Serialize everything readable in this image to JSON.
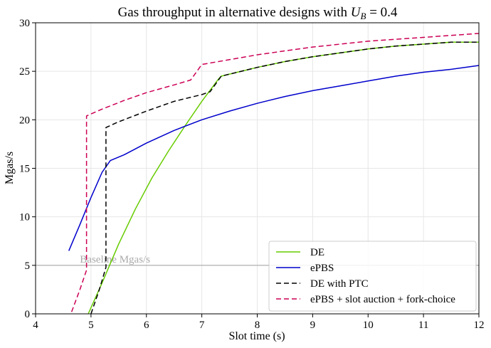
{
  "chart_data": {
    "type": "line",
    "title": "Gas throughput in alternative designs with ",
    "title_math": "U",
    "title_math_sub": "B",
    "title_math_tail": " = 0.4",
    "xlabel": "Slot time (s)",
    "ylabel": "Mgas/s",
    "xlim": [
      4,
      12
    ],
    "ylim": [
      0,
      30
    ],
    "xticks": [
      4,
      5,
      6,
      7,
      8,
      9,
      10,
      11,
      12
    ],
    "yticks": [
      0,
      5,
      10,
      15,
      20,
      25,
      30
    ],
    "grid": true,
    "legend_position": "bottom-right",
    "baseline": {
      "value": 5,
      "label": "Baseline Mgas/s",
      "color": "#aaaaaa"
    },
    "series": [
      {
        "name": "DE",
        "color": "#66cc00",
        "dash": "solid",
        "x": [
          4.95,
          5.2,
          5.5,
          5.8,
          6.1,
          6.4,
          6.7,
          7.0,
          7.3,
          7.35,
          8,
          8.5,
          9,
          9.5,
          10,
          10.5,
          11,
          11.5,
          12
        ],
        "y": [
          0,
          3.2,
          7.2,
          10.8,
          14.0,
          16.8,
          19.4,
          21.9,
          24.2,
          24.5,
          25.4,
          26.0,
          26.5,
          26.9,
          27.3,
          27.6,
          27.8,
          28.0,
          28.0
        ]
      },
      {
        "name": "ePBS",
        "color": "#0000cc",
        "dash": "solid",
        "x": [
          4.6,
          4.8,
          5.0,
          5.2,
          5.35,
          5.6,
          6.0,
          6.5,
          7.0,
          7.5,
          8,
          8.5,
          9,
          9.5,
          10,
          10.5,
          11,
          11.5,
          12
        ],
        "y": [
          6.5,
          9.2,
          12.0,
          14.6,
          15.8,
          16.4,
          17.6,
          18.9,
          20.0,
          20.9,
          21.7,
          22.4,
          23.0,
          23.5,
          24.0,
          24.5,
          24.9,
          25.2,
          25.6
        ]
      },
      {
        "name": "DE with PTC",
        "color": "#000000",
        "dash": "dashed",
        "x": [
          5.0,
          5.15,
          5.27,
          5.27,
          5.5,
          6.0,
          6.5,
          7.0,
          7.15,
          7.35,
          8,
          8.5,
          9,
          9.5,
          10,
          10.5,
          11,
          11.5,
          12
        ],
        "y": [
          0,
          2.5,
          4.8,
          19.2,
          19.8,
          20.9,
          21.9,
          22.6,
          22.9,
          24.5,
          25.4,
          26.0,
          26.5,
          26.9,
          27.3,
          27.6,
          27.8,
          28.0,
          28.0
        ]
      },
      {
        "name": "ePBS + slot auction + fork-choice",
        "color": "#cc0055",
        "dash": "dashed",
        "x": [
          4.65,
          4.8,
          4.92,
          4.92,
          5.2,
          5.6,
          6.0,
          6.5,
          6.8,
          7.0,
          7.5,
          8,
          8.5,
          9,
          9.5,
          10,
          10.5,
          11,
          11.5,
          12
        ],
        "y": [
          0.2,
          2.5,
          4.5,
          20.4,
          21.1,
          22.0,
          22.8,
          23.6,
          24.1,
          25.7,
          26.2,
          26.7,
          27.1,
          27.5,
          27.8,
          28.1,
          28.3,
          28.5,
          28.7,
          28.9
        ]
      }
    ]
  }
}
